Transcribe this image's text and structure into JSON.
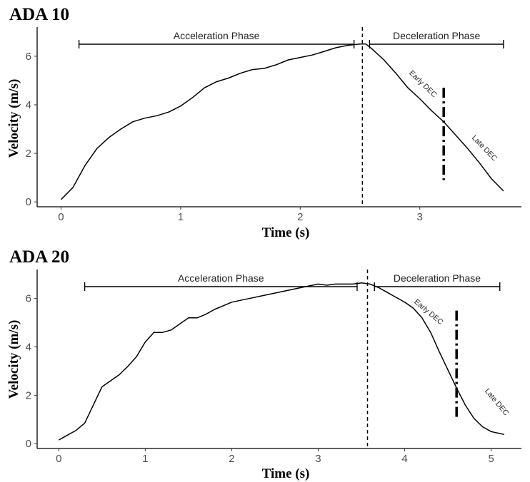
{
  "chart_data": [
    {
      "type": "line",
      "title": "ADA 10",
      "xlabel": "Time (s)",
      "ylabel": "Velocity (m/s)",
      "xlim": [
        -0.2,
        3.85
      ],
      "ylim": [
        -0.2,
        7.2
      ],
      "xticks": [
        0,
        1,
        2,
        3
      ],
      "yticks": [
        0,
        2,
        4,
        6
      ],
      "grid": false,
      "x": [
        0,
        0.1,
        0.2,
        0.3,
        0.4,
        0.5,
        0.6,
        0.7,
        0.8,
        0.9,
        1.0,
        1.1,
        1.2,
        1.3,
        1.4,
        1.5,
        1.6,
        1.7,
        1.8,
        1.9,
        2.0,
        2.1,
        2.2,
        2.3,
        2.4,
        2.5,
        2.55,
        2.6,
        2.7,
        2.8,
        2.9,
        3.0,
        3.1,
        3.2,
        3.3,
        3.4,
        3.5,
        3.6,
        3.7
      ],
      "y": [
        0.1,
        0.6,
        1.5,
        2.2,
        2.65,
        3.0,
        3.3,
        3.45,
        3.55,
        3.7,
        3.95,
        4.3,
        4.7,
        4.95,
        5.1,
        5.3,
        5.45,
        5.5,
        5.65,
        5.85,
        5.95,
        6.05,
        6.2,
        6.35,
        6.45,
        6.5,
        6.5,
        6.3,
        5.85,
        5.3,
        4.7,
        4.25,
        3.75,
        3.3,
        2.75,
        2.2,
        1.6,
        0.95,
        0.45
      ],
      "phases": [
        {
          "label": "Acceleration Phase",
          "x_start": 0.15,
          "x_end": 2.45
        },
        {
          "label": "Deceleration Phase",
          "x_start": 2.58,
          "x_end": 3.7
        }
      ],
      "phase_boundary_x": 2.52,
      "dec_split": {
        "x": 3.2,
        "y_low": 0.9,
        "y_high": 4.7
      },
      "annotations": [
        "Early DEC",
        "Late DEC"
      ]
    },
    {
      "type": "line",
      "title": "ADA 20",
      "xlabel": "Time (s)",
      "ylabel": "Velocity (m/s)",
      "xlim": [
        -0.25,
        5.35
      ],
      "ylim": [
        -0.2,
        7.2
      ],
      "xticks": [
        0,
        1,
        2,
        3,
        4,
        5
      ],
      "yticks": [
        0,
        2,
        4,
        6
      ],
      "grid": false,
      "x": [
        0,
        0.1,
        0.2,
        0.3,
        0.4,
        0.5,
        0.6,
        0.7,
        0.8,
        0.9,
        1.0,
        1.1,
        1.2,
        1.3,
        1.4,
        1.5,
        1.6,
        1.7,
        1.8,
        1.9,
        2.0,
        2.2,
        2.4,
        2.6,
        2.8,
        3.0,
        3.1,
        3.2,
        3.3,
        3.4,
        3.5,
        3.6,
        3.7,
        3.8,
        3.9,
        4.0,
        4.1,
        4.2,
        4.3,
        4.4,
        4.5,
        4.6,
        4.7,
        4.8,
        4.9,
        5.0,
        5.1,
        5.15
      ],
      "y": [
        0.15,
        0.35,
        0.55,
        0.85,
        1.6,
        2.35,
        2.6,
        2.85,
        3.2,
        3.6,
        4.2,
        4.6,
        4.6,
        4.7,
        4.95,
        5.2,
        5.2,
        5.35,
        5.55,
        5.7,
        5.85,
        6.0,
        6.15,
        6.3,
        6.45,
        6.6,
        6.55,
        6.6,
        6.6,
        6.6,
        6.65,
        6.6,
        6.45,
        6.25,
        6.05,
        5.85,
        5.6,
        5.2,
        4.6,
        3.8,
        3.05,
        2.3,
        1.6,
        1.05,
        0.7,
        0.5,
        0.42,
        0.38
      ],
      "phases": [
        {
          "label": "Acceleration Phase",
          "x_start": 0.3,
          "x_end": 3.45
        },
        {
          "label": "Deceleration Phase",
          "x_start": 3.65,
          "x_end": 5.1
        }
      ],
      "phase_boundary_x": 3.57,
      "dec_split": {
        "x": 4.6,
        "y_low": 1.0,
        "y_high": 5.5
      },
      "annotations": [
        "Early DEC",
        "Late DEC"
      ]
    }
  ]
}
